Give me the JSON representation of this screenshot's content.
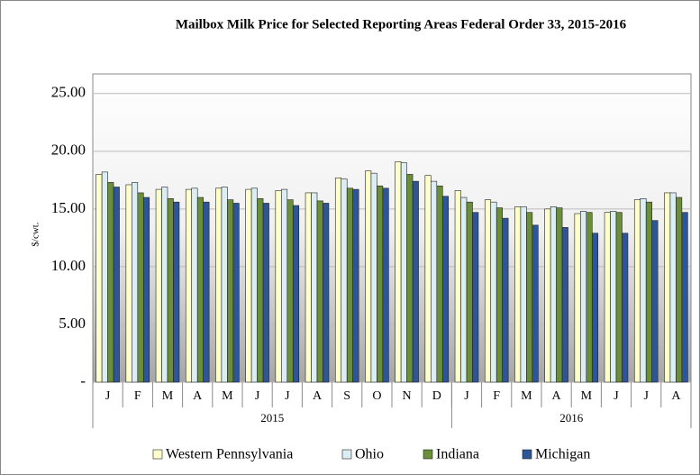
{
  "chart_data": {
    "type": "bar",
    "title": "Mailbox Milk Price for Selected Reporting Areas Federal Order 33, 2015-2016",
    "y_label": "$/cwt.",
    "groups": [
      {
        "label": "2015",
        "categories": [
          "J",
          "F",
          "M",
          "A",
          "M",
          "J",
          "J",
          "A",
          "S",
          "O",
          "N",
          "D"
        ]
      },
      {
        "label": "2016",
        "categories": [
          "J",
          "F",
          "M",
          "A",
          "M",
          "J",
          "J",
          "A"
        ]
      }
    ],
    "series": [
      {
        "name": "Western Pennsylvania",
        "color": "#ffffcc",
        "values": [
          18.0,
          17.1,
          16.7,
          16.7,
          16.8,
          16.7,
          16.6,
          16.4,
          17.7,
          18.3,
          19.1,
          17.9,
          16.6,
          15.8,
          15.2,
          15.0,
          14.6,
          14.7,
          15.8,
          16.4
        ]
      },
      {
        "name": "Ohio",
        "color": "#dbeef4",
        "values": [
          18.2,
          17.3,
          16.9,
          16.8,
          16.9,
          16.8,
          16.7,
          16.4,
          17.6,
          18.1,
          19.0,
          17.4,
          16.0,
          15.6,
          15.2,
          15.2,
          14.8,
          14.8,
          15.9,
          16.4
        ]
      },
      {
        "name": "Indiana",
        "color": "#6a8e3a",
        "values": [
          17.3,
          16.4,
          15.9,
          16.0,
          15.8,
          15.9,
          15.8,
          15.7,
          16.8,
          17.0,
          18.0,
          17.0,
          15.6,
          15.1,
          14.7,
          15.1,
          14.7,
          14.7,
          15.6,
          16.0
        ]
      },
      {
        "name": "Michigan",
        "color": "#2e5597",
        "values": [
          16.9,
          16.0,
          15.6,
          15.6,
          15.5,
          15.5,
          15.3,
          15.5,
          16.7,
          16.8,
          17.4,
          16.1,
          14.7,
          14.2,
          13.6,
          13.4,
          12.9,
          12.9,
          14.0,
          14.7
        ]
      }
    ],
    "ylim": [
      0,
      26.7
    ],
    "yticks": [
      {
        "value": 0,
        "label": "-"
      },
      {
        "value": 5,
        "label": "5.00"
      },
      {
        "value": 10,
        "label": "10.00"
      },
      {
        "value": 15,
        "label": "15.00"
      },
      {
        "value": 20,
        "label": "20.00"
      },
      {
        "value": 25,
        "label": "25.00"
      }
    ],
    "grid": true,
    "legend": "bottom"
  }
}
